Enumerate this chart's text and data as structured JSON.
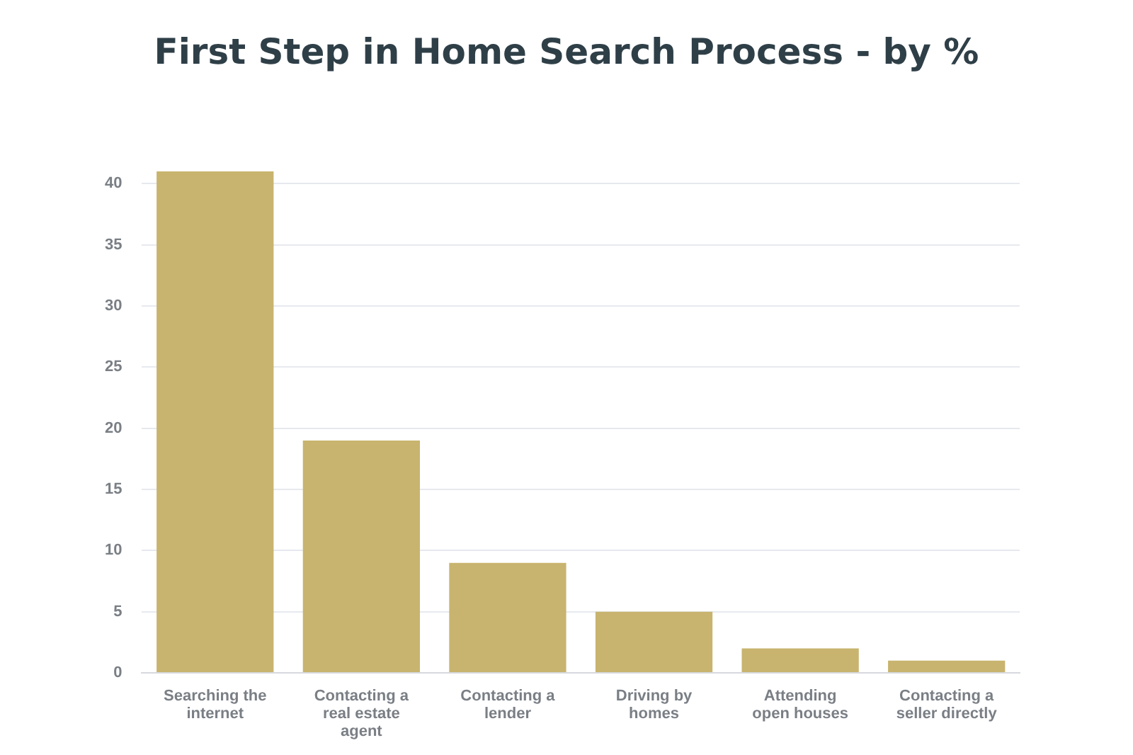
{
  "chart_data": {
    "type": "bar",
    "title": "First Step in Home Search Process - by %",
    "categories": [
      "Searching the internet",
      "Contacting a real estate agent",
      "Contacting a lender",
      "Driving by homes",
      "Attending open houses",
      "Contacting a seller directly"
    ],
    "values": [
      41,
      19,
      9,
      5,
      2,
      1
    ],
    "color": "#c8b46e",
    "ylim": [
      0,
      41
    ],
    "yticks": [
      0,
      5,
      10,
      15,
      20,
      25,
      30,
      35,
      40
    ],
    "grid": "y",
    "legend": false
  }
}
